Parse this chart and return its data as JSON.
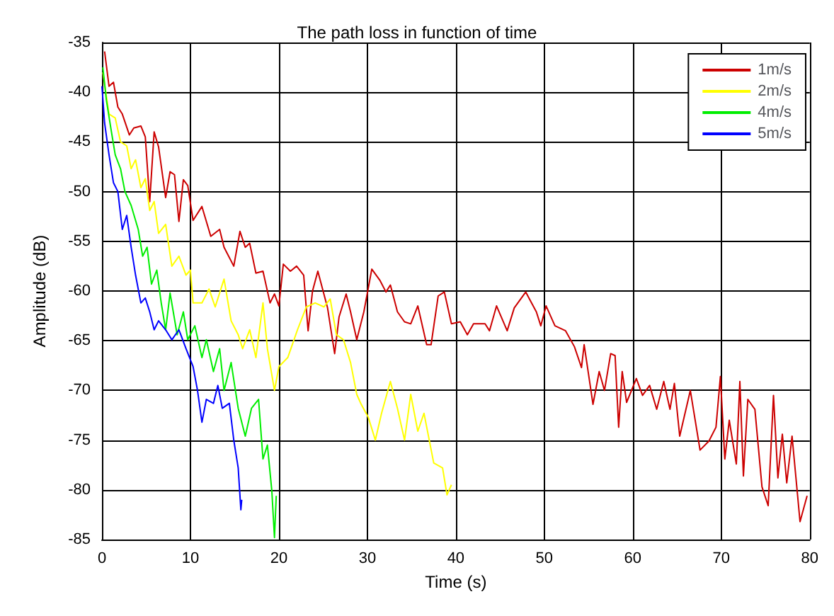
{
  "chart_data": {
    "type": "line",
    "title": "The path loss in function of time",
    "xlabel": "Time (s)",
    "ylabel": "Amplitude (dB)",
    "xlim": [
      0,
      80
    ],
    "xticks": [
      0,
      10,
      20,
      30,
      40,
      50,
      60,
      70,
      80
    ],
    "ylim": [
      -85,
      -35
    ],
    "yticks": [
      -85,
      -80,
      -75,
      -70,
      -65,
      -60,
      -55,
      -50,
      -45,
      -40,
      -35
    ],
    "grid": true,
    "legend": "top right",
    "marker": "none",
    "line_style": "solid",
    "series": [
      {
        "name": "1m/s",
        "color": "#cc0000",
        "x": [
          0.3,
          0.8,
          1.3,
          1.8,
          2.3,
          3.1,
          3.6,
          4.4,
          4.9,
          5.4,
          5.9,
          6.4,
          7.2,
          7.7,
          8.2,
          8.7,
          9.2,
          9.7,
          10.3,
          11.3,
          12.3,
          13.3,
          13.8,
          14.9,
          15.6,
          16.2,
          16.7,
          17.4,
          18.2,
          19,
          19.5,
          20,
          20.5,
          21.3,
          22,
          22.8,
          23.3,
          23.8,
          24.4,
          25.5,
          26.3,
          26.8,
          27.6,
          28.1,
          28.8,
          29.6,
          30.5,
          31.4,
          32.1,
          32.6,
          33.4,
          34.2,
          34.9,
          35.7,
          36.7,
          37.2,
          38,
          38.7,
          39.5,
          40.5,
          41.3,
          42,
          43.3,
          43.8,
          44.6,
          45.8,
          46.6,
          47.9,
          49.1,
          49.6,
          50.2,
          51.2,
          52.4,
          53.4,
          54.2,
          54.5,
          55.5,
          56.2,
          56.8,
          57.5,
          58,
          58.4,
          58.8,
          59.3,
          60.4,
          61.1,
          61.9,
          62.7,
          63.5,
          64.2,
          64.7,
          65.3,
          66.5,
          67.6,
          68.6,
          69.4,
          69.9,
          70.4,
          70.9,
          71.7,
          72.1,
          72.5,
          73,
          73.8,
          74.6,
          75.3,
          75.9,
          76.4,
          76.9,
          77.4,
          78,
          78.9,
          79.7
        ],
        "values": [
          -35.9,
          -39.4,
          -39,
          -41.5,
          -42.2,
          -44.3,
          -43.6,
          -43.4,
          -44.5,
          -51,
          -44,
          -45.5,
          -50.6,
          -48,
          -48.3,
          -53,
          -48.8,
          -49.4,
          -52.9,
          -51.5,
          -54.5,
          -53.8,
          -55.6,
          -57.5,
          -54,
          -55.6,
          -55.2,
          -58.2,
          -58,
          -61.2,
          -60.3,
          -61.5,
          -57.3,
          -58,
          -57.5,
          -58.4,
          -64,
          -60,
          -58,
          -61.7,
          -66.3,
          -62.6,
          -60.3,
          -62.1,
          -64.9,
          -62.1,
          -57.8,
          -58.9,
          -60.1,
          -59.4,
          -62.1,
          -63.1,
          -63.3,
          -61.5,
          -65.4,
          -65.4,
          -60.5,
          -60.1,
          -63.3,
          -63.1,
          -64.4,
          -63.3,
          -63.3,
          -64,
          -61.5,
          -64,
          -61.7,
          -60.1,
          -62.1,
          -63.5,
          -61.5,
          -63.5,
          -64,
          -65.6,
          -67.7,
          -65.4,
          -71.4,
          -68.1,
          -70,
          -66.3,
          -66.5,
          -73.7,
          -68.1,
          -71.2,
          -68.8,
          -70.5,
          -69.5,
          -71.9,
          -69.1,
          -71.9,
          -69.3,
          -74.6,
          -70,
          -76,
          -75.1,
          -73.7,
          -68.6,
          -76.9,
          -73,
          -77.4,
          -69.1,
          -78.6,
          -70.9,
          -71.9,
          -79.7,
          -81.6,
          -70.5,
          -78.8,
          -74.4,
          -79.3,
          -74.6,
          -83.2,
          -80.6
        ]
      },
      {
        "name": "2m/s",
        "color": "#ffff00",
        "x": [
          0.1,
          0.8,
          1.5,
          2.1,
          2.8,
          3.3,
          3.8,
          4.4,
          4.9,
          5.4,
          5.9,
          6.4,
          7.2,
          7.9,
          8.7,
          9.5,
          10,
          10.3,
          11.3,
          12.1,
          12.8,
          13.8,
          14.6,
          15.4,
          15.9,
          16.7,
          17.4,
          18.2,
          18.7,
          19.5,
          20,
          21,
          22.1,
          23.1,
          24.1,
          25.1,
          25.8,
          26.5,
          27.3,
          28.1,
          28.8,
          29.3,
          30.1,
          30.9,
          31.6,
          32.6,
          33.4,
          34.2,
          34.9,
          35.7,
          36.4,
          37.5,
          38.5,
          39,
          39.5
        ],
        "values": [
          -38,
          -42.2,
          -42.6,
          -45,
          -45.4,
          -47.7,
          -46.8,
          -49.6,
          -48.7,
          -51.9,
          -51,
          -54.2,
          -53.3,
          -57.5,
          -56.5,
          -58.4,
          -57.9,
          -61.2,
          -61.2,
          -59.8,
          -61.6,
          -58.8,
          -63,
          -64.4,
          -65.8,
          -63.9,
          -66.7,
          -61.2,
          -65.8,
          -70,
          -67.6,
          -66.7,
          -63.9,
          -61.6,
          -61.2,
          -61.6,
          -60.8,
          -64.4,
          -64.9,
          -67.2,
          -70.4,
          -71.4,
          -72.7,
          -75,
          -72.3,
          -69.1,
          -71.8,
          -75,
          -70.4,
          -74.1,
          -72.3,
          -77.3,
          -77.8,
          -80.5,
          -79.5
        ]
      },
      {
        "name": "4m/s",
        "color": "#00ee00",
        "x": [
          0.1,
          0.5,
          1,
          1.5,
          2.1,
          2.6,
          3.3,
          4.1,
          4.6,
          5.1,
          5.6,
          6.2,
          6.7,
          7.2,
          7.7,
          8.5,
          9.2,
          9.7,
          10.5,
          11.3,
          11.8,
          12.6,
          13.3,
          13.8,
          14.6,
          15.4,
          16.2,
          16.9,
          17.7,
          18.2,
          18.7,
          19.2,
          19.5,
          19.7
        ],
        "values": [
          -37.5,
          -40.8,
          -43.6,
          -46.3,
          -47.7,
          -50,
          -51.4,
          -53.8,
          -56.5,
          -55.6,
          -59.3,
          -57.9,
          -61.2,
          -63.9,
          -60.2,
          -64.4,
          -62.1,
          -64.9,
          -63.5,
          -66.7,
          -64.9,
          -68.1,
          -65.8,
          -70,
          -67.2,
          -71.8,
          -74.6,
          -71.8,
          -70.9,
          -76.9,
          -75.5,
          -80.1,
          -84.8,
          -80.6
        ]
      },
      {
        "name": "5m/s",
        "color": "#0000ff",
        "x": [
          0,
          0.3,
          0.8,
          1.3,
          1.8,
          2.3,
          2.8,
          3.3,
          3.8,
          4.4,
          4.9,
          5.4,
          5.9,
          6.4,
          7.2,
          7.9,
          8.7,
          9.5,
          10.3,
          10.8,
          11.3,
          11.8,
          12.6,
          13.1,
          13.6,
          14.4,
          14.9,
          15.4,
          15.7,
          15.8
        ],
        "values": [
          -39.4,
          -43.1,
          -46.3,
          -49.1,
          -50,
          -53.8,
          -52.4,
          -55.6,
          -58.4,
          -61.2,
          -60.7,
          -62.1,
          -63.9,
          -63,
          -63.9,
          -64.9,
          -63.9,
          -65.8,
          -67.6,
          -70,
          -73.2,
          -70.9,
          -71.3,
          -69.5,
          -71.8,
          -71.3,
          -75,
          -77.8,
          -82,
          -81
        ]
      }
    ]
  }
}
